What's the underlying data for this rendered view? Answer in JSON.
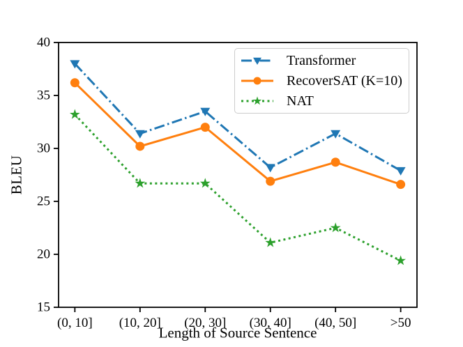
{
  "figure": {
    "background": "#ffffff",
    "axis_color": "#000000"
  },
  "chart_data": {
    "type": "line",
    "title": "",
    "xlabel": "Length of Source Sentence",
    "ylabel": "BLEU",
    "categories": [
      "(0, 10]",
      "(10, 20]",
      "(20, 30]",
      "(30, 40]",
      "(40, 50]",
      ">50"
    ],
    "series": [
      {
        "name": "Transformer",
        "color": "#1f77b4",
        "linestyle": "dashdot",
        "marker": "triangle-down",
        "values": [
          38.0,
          31.4,
          33.5,
          28.2,
          31.4,
          27.9
        ]
      },
      {
        "name": "RecoverSAT (K=10)",
        "color": "#ff7f0e",
        "linestyle": "solid",
        "marker": "circle",
        "values": [
          36.2,
          30.2,
          32.0,
          26.9,
          28.7,
          26.6
        ]
      },
      {
        "name": "NAT",
        "color": "#2ca02c",
        "linestyle": "dotted",
        "marker": "star",
        "values": [
          33.2,
          26.7,
          26.7,
          21.1,
          22.5,
          19.4
        ]
      }
    ],
    "ylim": [
      15,
      40
    ],
    "yticks": [
      15,
      20,
      25,
      30,
      35,
      40
    ],
    "grid": false,
    "legend_position": "upper right"
  }
}
